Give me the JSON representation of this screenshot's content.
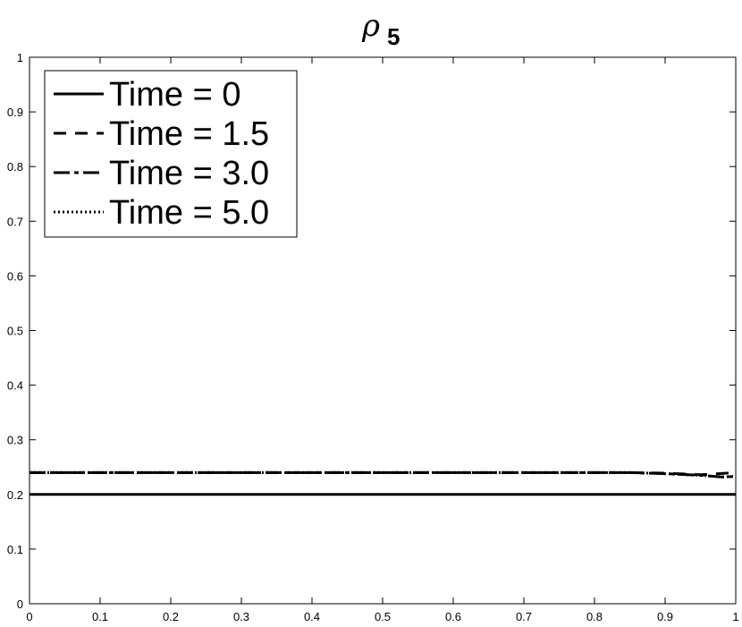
{
  "chart_data": {
    "type": "line",
    "title": {
      "symbol": "ρ",
      "subscript": "5"
    },
    "xlabel": "",
    "ylabel": "",
    "xlim": [
      0,
      1
    ],
    "ylim": [
      0,
      1
    ],
    "x_ticks": [
      "0",
      "0.1",
      "0.2",
      "0.3",
      "0.4",
      "0.5",
      "0.6",
      "0.7",
      "0.8",
      "0.9",
      "1"
    ],
    "y_ticks": [
      "0",
      "0.1",
      "0.2",
      "0.3",
      "0.4",
      "0.5",
      "0.6",
      "0.7",
      "0.8",
      "0.9",
      "1"
    ],
    "grid": false,
    "legend_position": "top-left",
    "series": [
      {
        "name": "Time = 0",
        "style": "solid",
        "x": [
          0,
          1
        ],
        "y": [
          0.2,
          0.2
        ]
      },
      {
        "name": "Time = 1.5",
        "style": "dashed",
        "x": [
          0,
          0.85,
          0.9,
          0.95,
          1
        ],
        "y": [
          0.24,
          0.24,
          0.239,
          0.236,
          0.24
        ]
      },
      {
        "name": "Time = 3.0",
        "style": "dashdot",
        "x": [
          0,
          0.85,
          0.9,
          0.95,
          0.98,
          1
        ],
        "y": [
          0.24,
          0.24,
          0.238,
          0.235,
          0.232,
          0.233
        ]
      },
      {
        "name": "Time = 5.0",
        "style": "dotted",
        "x": [
          0,
          0.85,
          0.9,
          0.95,
          0.98,
          1
        ],
        "y": [
          0.24,
          0.24,
          0.238,
          0.235,
          0.232,
          0.233
        ]
      }
    ]
  }
}
